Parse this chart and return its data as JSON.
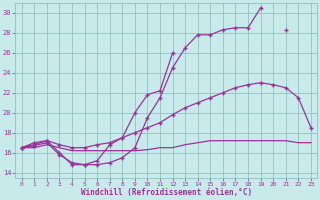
{
  "x": [
    0,
    1,
    2,
    3,
    4,
    5,
    6,
    7,
    8,
    9,
    10,
    11,
    12,
    13,
    14,
    15,
    16,
    17,
    18,
    19,
    20,
    21,
    22,
    23
  ],
  "curve_jagged": [
    16.5,
    16.7,
    17.0,
    15.8,
    15.0,
    14.8,
    14.8,
    15.0,
    15.5,
    16.5,
    19.5,
    21.5,
    24.5,
    26.5,
    27.8,
    27.8,
    28.3,
    28.5,
    28.5,
    30.5,
    null,
    28.3,
    null,
    null
  ],
  "curve_jagged2": [
    16.5,
    16.8,
    17.2,
    16.0,
    14.8,
    14.8,
    15.2,
    16.8,
    17.5,
    20.0,
    21.8,
    22.2,
    26.0,
    null,
    null,
    null,
    null,
    null,
    null,
    null,
    null,
    null,
    null,
    null
  ],
  "curve_smooth": [
    16.5,
    17.0,
    17.2,
    16.8,
    16.5,
    16.5,
    16.8,
    17.0,
    17.5,
    18.0,
    18.5,
    19.0,
    19.8,
    20.5,
    21.0,
    21.5,
    22.0,
    22.5,
    22.8,
    23.0,
    22.8,
    22.5,
    21.5,
    18.5
  ],
  "curve_flat": [
    16.5,
    16.5,
    16.8,
    16.5,
    16.2,
    16.2,
    16.2,
    16.2,
    16.2,
    16.2,
    16.3,
    16.5,
    16.5,
    16.8,
    17.0,
    17.2,
    17.2,
    17.2,
    17.2,
    17.2,
    17.2,
    17.2,
    17.0,
    17.0
  ],
  "color": "#993399",
  "bg_color": "#c8eaea",
  "grid_color": "#8ab8b8",
  "xlabel": "Windchill (Refroidissement éolien,°C)",
  "ylim": [
    13.5,
    31.0
  ],
  "xlim": [
    -0.5,
    23.5
  ],
  "yticks": [
    14,
    16,
    18,
    20,
    22,
    24,
    26,
    28,
    30
  ],
  "xticks": [
    0,
    1,
    2,
    3,
    4,
    5,
    6,
    7,
    8,
    9,
    10,
    11,
    12,
    13,
    14,
    15,
    16,
    17,
    18,
    19,
    20,
    21,
    22,
    23
  ]
}
